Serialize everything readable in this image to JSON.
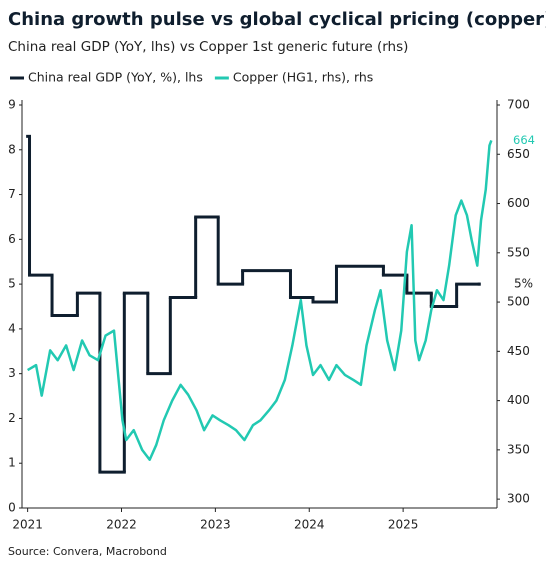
{
  "chart_data": {
    "type": "line",
    "title": "China growth pulse vs global cyclical pricing (copper)",
    "subtitle": "China real GDP (YoY, lhs) vs Copper 1st generic future (rhs)",
    "source": "Source: Convera, Macrobond",
    "xlim": [
      2020.94,
      2026.0
    ],
    "xticks": [
      2021,
      2022,
      2023,
      2024,
      2025
    ],
    "ylim": [
      0,
      9
    ],
    "yticks": [
      0,
      1,
      2,
      3,
      4,
      5,
      6,
      7,
      8,
      9
    ],
    "y2lim": [
      291,
      700
    ],
    "y2ticks": [
      300,
      350,
      400,
      450,
      500,
      550,
      600,
      650,
      700
    ],
    "grid": false,
    "series": [
      {
        "name": "China real GDP (YoY, %), lhs",
        "color": "#0f1e2e",
        "step": true,
        "x": [
          2021.0,
          2021.02,
          2021.26,
          2021.53,
          2021.77,
          2022.03,
          2022.28,
          2022.52,
          2022.79,
          2023.03,
          2023.29,
          2023.8,
          2024.04,
          2024.29,
          2024.79,
          2025.04,
          2025.3,
          2025.57,
          2025.81
        ],
        "values": [
          8.3,
          5.2,
          4.3,
          4.8,
          0.8,
          4.8,
          3.0,
          4.7,
          6.5,
          5.0,
          5.3,
          4.7,
          4.6,
          5.4,
          5.2,
          4.8,
          4.5,
          5.0,
          5.0
        ],
        "value_labels": [
          null,
          null,
          null,
          null,
          null,
          null,
          null,
          null,
          null,
          null,
          null,
          null,
          null,
          null,
          null,
          null,
          null,
          null,
          "5%"
        ]
      },
      {
        "name": "Copper (HG1, rhs), rhs",
        "color": "#22c9b2",
        "axis": "y2",
        "x": [
          2021.0,
          2021.09,
          2021.15,
          2021.24,
          2021.32,
          2021.41,
          2021.49,
          2021.58,
          2021.66,
          2021.75,
          2021.83,
          2021.92,
          2022.01,
          2022.05,
          2022.13,
          2022.22,
          2022.3,
          2022.37,
          2022.45,
          2022.54,
          2022.63,
          2022.71,
          2022.8,
          2022.88,
          2022.97,
          2023.05,
          2023.14,
          2023.22,
          2023.31,
          2023.4,
          2023.48,
          2023.57,
          2023.65,
          2023.74,
          2023.82,
          2023.91,
          2023.97,
          2024.04,
          2024.12,
          2024.21,
          2024.29,
          2024.38,
          2024.47,
          2024.55,
          2024.61,
          2024.7,
          2024.76,
          2024.83,
          2024.91,
          2024.98,
          2025.04,
          2025.09,
          2025.13,
          2025.17,
          2025.24,
          2025.3,
          2025.36,
          2025.43,
          2025.49,
          2025.56,
          2025.62,
          2025.68,
          2025.73,
          2025.79,
          2025.83,
          2025.88,
          2025.92,
          2025.94
        ],
        "values": [
          431,
          436,
          405,
          451,
          441,
          456,
          431,
          461,
          446,
          441,
          466,
          471,
          380,
          360,
          370,
          350,
          340,
          355,
          380,
          400,
          416,
          406,
          390,
          370,
          385,
          380,
          375,
          370,
          360,
          375,
          380,
          390,
          400,
          421,
          456,
          502,
          456,
          426,
          436,
          421,
          436,
          426,
          421,
          416,
          456,
          492,
          512,
          461,
          431,
          471,
          551,
          578,
          461,
          441,
          461,
          492,
          512,
          502,
          537,
          588,
          603,
          588,
          563,
          537,
          583,
          614,
          659,
          664
        ]
      }
    ]
  }
}
